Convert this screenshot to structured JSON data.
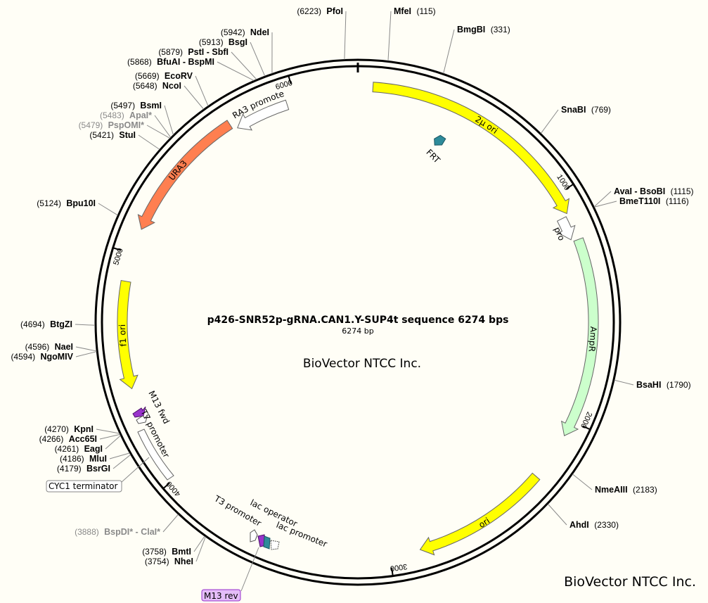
{
  "plasmid": {
    "title": "p426-SNR52p-gRNA.CAN1.Y-SUP4t sequence 6274 bps",
    "length_label": "6274 bp",
    "length": 6274,
    "brand_center": "BioVector NTCC Inc.",
    "brand_corner": "BioVector NTCC Inc."
  },
  "ticks": [
    {
      "pos": 1000,
      "label": "1000"
    },
    {
      "pos": 2000,
      "label": "2000"
    },
    {
      "pos": 3000,
      "label": "3000"
    },
    {
      "pos": 4000,
      "label": "4000"
    },
    {
      "pos": 5000,
      "label": "5000"
    },
    {
      "pos": 6000,
      "label": "6000"
    }
  ],
  "sites": [
    {
      "name": "PfoI",
      "pos_label": "(6223)",
      "pos": 6223,
      "side": "left"
    },
    {
      "name": "MfeI",
      "pos_label": "(115)",
      "pos": 115,
      "side": "right"
    },
    {
      "name": "BmgBI",
      "pos_label": "(331)",
      "pos": 331,
      "side": "right"
    },
    {
      "name": "SnaBI",
      "pos_label": "(769)",
      "pos": 769,
      "side": "right"
    },
    {
      "name": "AvaI - BsoBI",
      "pos_label": "(1115)",
      "pos": 1115,
      "side": "right"
    },
    {
      "name": "BmeT110I",
      "pos_label": "(1116)",
      "pos": 1116,
      "side": "right"
    },
    {
      "name": "BsaHI",
      "pos_label": "(1790)",
      "pos": 1790,
      "side": "right"
    },
    {
      "name": "NmeAIII",
      "pos_label": "(2183)",
      "pos": 2183,
      "side": "right"
    },
    {
      "name": "AhdI",
      "pos_label": "(2330)",
      "pos": 2330,
      "side": "right"
    },
    {
      "name": "NheI",
      "pos_label": "(3754)",
      "pos": 3754,
      "side": "left"
    },
    {
      "name": "BmtI",
      "pos_label": "(3758)",
      "pos": 3758,
      "side": "left"
    },
    {
      "name": "BspDI* - ClaI*",
      "pos_label": "(3888)",
      "pos": 3888,
      "side": "left",
      "dim": true
    },
    {
      "name": "BsrGI",
      "pos_label": "(4179)",
      "pos": 4179,
      "side": "left"
    },
    {
      "name": "MluI",
      "pos_label": "(4186)",
      "pos": 4186,
      "side": "left"
    },
    {
      "name": "EagI",
      "pos_label": "(4261)",
      "pos": 4261,
      "side": "left"
    },
    {
      "name": "Acc65I",
      "pos_label": "(4266)",
      "pos": 4266,
      "side": "left"
    },
    {
      "name": "KpnI",
      "pos_label": "(4270)",
      "pos": 4270,
      "side": "left"
    },
    {
      "name": "NgoMIV",
      "pos_label": "(4594)",
      "pos": 4594,
      "side": "left"
    },
    {
      "name": "NaeI",
      "pos_label": "(4596)",
      "pos": 4596,
      "side": "left"
    },
    {
      "name": "BtgZI",
      "pos_label": "(4694)",
      "pos": 4694,
      "side": "left"
    },
    {
      "name": "Bpu10I",
      "pos_label": "(5124)",
      "pos": 5124,
      "side": "left"
    },
    {
      "name": "StuI",
      "pos_label": "(5421)",
      "pos": 5421,
      "side": "left"
    },
    {
      "name": "PspOMI*",
      "pos_label": "(5479)",
      "pos": 5479,
      "side": "left",
      "dim": true
    },
    {
      "name": "ApaI*",
      "pos_label": "(5483)",
      "pos": 5483,
      "side": "left",
      "dim": true
    },
    {
      "name": "BsmI",
      "pos_label": "(5497)",
      "pos": 5497,
      "side": "left"
    },
    {
      "name": "NcoI",
      "pos_label": "(5648)",
      "pos": 5648,
      "side": "left"
    },
    {
      "name": "EcoRV",
      "pos_label": "(5669)",
      "pos": 5669,
      "side": "left"
    },
    {
      "name": "BfuAI - BspMI",
      "pos_label": "(5868)",
      "pos": 5868,
      "side": "left"
    },
    {
      "name": "PstI - SbfI",
      "pos_label": "(5879)",
      "pos": 5879,
      "side": "left"
    },
    {
      "name": "BsgI",
      "pos_label": "(5913)",
      "pos": 5913,
      "side": "left"
    },
    {
      "name": "NdeI",
      "pos_label": "(5942)",
      "pos": 5942,
      "side": "left"
    }
  ],
  "features": [
    {
      "name": "2µ ori",
      "start": 64,
      "end": 1090,
      "dir": 1,
      "color": "#ffff00"
    },
    {
      "name": "AmpR promoter",
      "start": 1100,
      "end": 1200,
      "dir": 1,
      "color": "#ffffff"
    },
    {
      "name": "AmpR",
      "start": 1210,
      "end": 2070,
      "dir": 1,
      "color": "#ccffcc"
    },
    {
      "name": "ori",
      "start": 2280,
      "end": 2870,
      "dir": 1,
      "color": "#ffff00"
    },
    {
      "name": "f1 ori",
      "start": 4420,
      "end": 4880,
      "dir": -1,
      "color": "#ffff00"
    },
    {
      "name": "URA3",
      "start": 5110,
      "end": 5700,
      "dir": -1,
      "color": "#ff7f50"
    },
    {
      "name": "URA3 promoter",
      "start": 5720,
      "end": 5960,
      "dir": -1,
      "color": "#ffffff"
    },
    {
      "name": "FRT",
      "color": "#2e8b9a"
    },
    {
      "name": "M13 fwd",
      "color": "#9933cc"
    },
    {
      "name": "T7 promoter",
      "color": "#ffffff"
    },
    {
      "name": "CYC1 terminator",
      "color": "#ffffff"
    },
    {
      "name": "T3 promoter",
      "color": "#ffffff"
    },
    {
      "name": "lac operator",
      "color": "#2e8b9a"
    },
    {
      "name": "lac promoter",
      "color": "#ffffff"
    },
    {
      "name": "M13 rev",
      "color": "#e4bdf8"
    }
  ]
}
